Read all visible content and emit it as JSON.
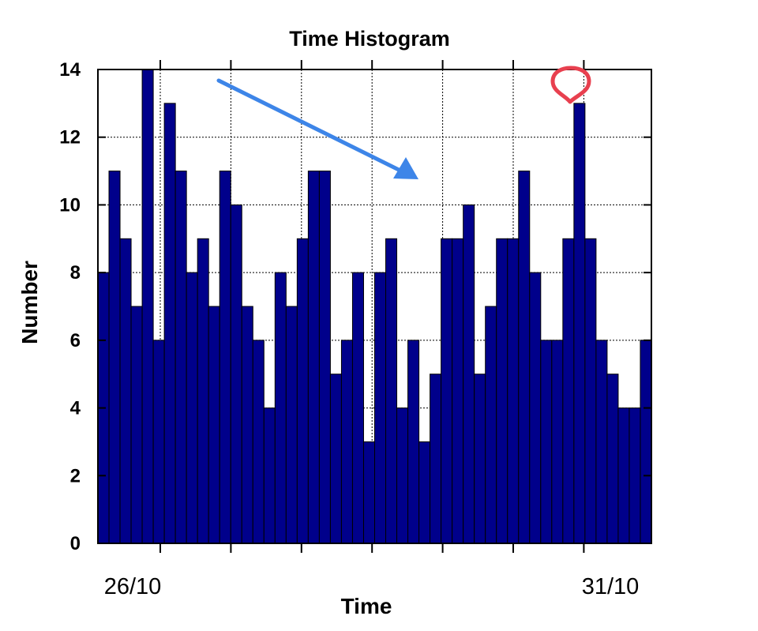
{
  "chart_data": {
    "type": "bar",
    "title": "Time Histogram",
    "xlabel": "Time",
    "ylabel": "Number",
    "ylim": [
      0,
      14
    ],
    "yticks": [
      0,
      2,
      4,
      6,
      8,
      10,
      12,
      14
    ],
    "xtick_labels": [
      "26/10",
      "31/10"
    ],
    "grid": true,
    "bar_color": "#00008b",
    "values": [
      8,
      11,
      9,
      7,
      14,
      6,
      13,
      11,
      8,
      9,
      7,
      11,
      10,
      7,
      6,
      4,
      8,
      7,
      9,
      11,
      11,
      5,
      6,
      8,
      3,
      8,
      9,
      4,
      6,
      3,
      5,
      9,
      9,
      10,
      5,
      7,
      9,
      9,
      11,
      8,
      6,
      6,
      9,
      13,
      9,
      6,
      5,
      4,
      4,
      6
    ]
  },
  "annotations": {
    "trend_arrow_color": "#3d85e8",
    "highlight_marker_color": "#e8404f"
  }
}
